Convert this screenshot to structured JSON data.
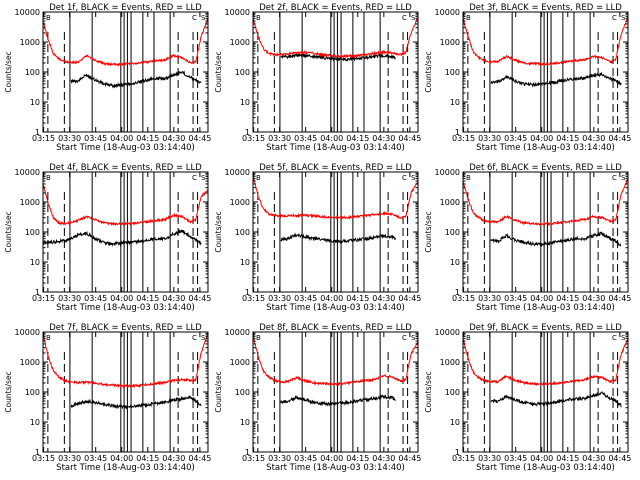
{
  "figure": {
    "background": "#ffffff"
  },
  "shared": {
    "type": "line",
    "x_start_label": "Start Time (18-Aug-03 03:14:40)",
    "ylabel": "Counts/sec",
    "y_scale": "log",
    "ylim": [
      1,
      10000
    ],
    "y_ticks": [
      1,
      10,
      100,
      1000,
      10000
    ],
    "y_tick_labels": [
      "1",
      "10",
      "100",
      "1000",
      "10000"
    ],
    "xlim_minutes": [
      0,
      95
    ],
    "x_ticks_minutes": [
      0.33,
      15.33,
      30.33,
      45.33,
      60.33,
      75.33,
      90.33
    ],
    "x_tick_labels": [
      "03:15",
      "03:30",
      "03:45",
      "04:00",
      "04:15",
      "04:30",
      "04:45"
    ],
    "solid_markers_minutes": [
      15.5,
      28.3,
      44.8,
      46.7,
      48.6,
      50.7,
      57.5,
      63.9,
      73.2
    ],
    "dashed_markers_minutes": [
      2.8,
      12.3,
      77.8,
      86.4,
      89.0
    ],
    "series_colors": {
      "events": "#000000",
      "lld": "#ff0000"
    },
    "legend": {
      "events": "BLACK = Events",
      "lld": "RED = LLD"
    }
  },
  "chart_data": [
    {
      "type": "line",
      "detector": "1f",
      "title": "Det 1f, BLACK = Events, RED = LLD",
      "corner_left": "B",
      "corner_right": "C",
      "corner_right2": "S",
      "series": [
        {
          "name": "Events",
          "color": "#000000",
          "x_range_minutes": [
            16,
            91
          ],
          "x": [
            16,
            20,
            25,
            30,
            35,
            40,
            45,
            50,
            55,
            60,
            65,
            70,
            75,
            80,
            85,
            88,
            91
          ],
          "values": [
            50,
            50,
            80,
            55,
            40,
            35,
            37,
            40,
            45,
            55,
            60,
            60,
            80,
            100,
            65,
            55,
            45
          ]
        },
        {
          "name": "LLD",
          "color": "#ff0000",
          "x_range_minutes": [
            0,
            95
          ],
          "x": [
            0,
            3,
            6,
            9,
            12,
            15,
            20,
            25,
            30,
            35,
            40,
            45,
            50,
            55,
            60,
            65,
            70,
            75,
            80,
            85,
            88,
            91,
            95
          ],
          "values": [
            5000,
            1200,
            400,
            280,
            230,
            210,
            210,
            350,
            250,
            190,
            180,
            180,
            190,
            200,
            220,
            240,
            250,
            350,
            300,
            200,
            220,
            1500,
            6000
          ]
        }
      ]
    },
    {
      "type": "line",
      "detector": "2f",
      "title": "Det 2f, BLACK = Events, RED = LLD",
      "corner_left": "B",
      "corner_right": "C",
      "corner_right2": "S",
      "series": [
        {
          "name": "Events",
          "color": "#000000",
          "x_range_minutes": [
            16,
            82
          ],
          "x": [
            16,
            20,
            25,
            30,
            35,
            40,
            45,
            50,
            55,
            60,
            65,
            70,
            75,
            80,
            82
          ],
          "values": [
            320,
            330,
            360,
            350,
            330,
            300,
            280,
            270,
            270,
            280,
            300,
            330,
            350,
            330,
            300
          ]
        },
        {
          "name": "LLD",
          "color": "#ff0000",
          "x_range_minutes": [
            0,
            95
          ],
          "x": [
            0,
            3,
            6,
            9,
            12,
            15,
            20,
            25,
            30,
            35,
            40,
            45,
            50,
            55,
            60,
            65,
            70,
            75,
            80,
            85,
            88,
            91,
            95
          ],
          "values": [
            6000,
            1500,
            600,
            420,
            380,
            380,
            400,
            430,
            450,
            420,
            380,
            350,
            340,
            340,
            350,
            380,
            420,
            450,
            430,
            380,
            450,
            2000,
            7000
          ]
        }
      ]
    },
    {
      "type": "line",
      "detector": "3f",
      "title": "Det 3f, BLACK = Events, RED = LLD",
      "corner_left": "B",
      "corner_right": "C",
      "corner_right2": "S",
      "series": [
        {
          "name": "Events",
          "color": "#000000",
          "x_range_minutes": [
            16,
            91
          ],
          "x": [
            16,
            20,
            25,
            30,
            35,
            40,
            45,
            50,
            55,
            60,
            65,
            70,
            75,
            80,
            85,
            88,
            91
          ],
          "values": [
            45,
            45,
            70,
            50,
            40,
            38,
            40,
            42,
            48,
            55,
            60,
            62,
            75,
            85,
            60,
            50,
            40
          ]
        },
        {
          "name": "LLD",
          "color": "#ff0000",
          "x_range_minutes": [
            0,
            95
          ],
          "x": [
            0,
            3,
            6,
            9,
            12,
            15,
            20,
            25,
            30,
            35,
            40,
            45,
            50,
            55,
            60,
            65,
            70,
            75,
            80,
            85,
            88,
            91,
            95
          ],
          "values": [
            6000,
            1500,
            450,
            300,
            240,
            220,
            220,
            330,
            250,
            200,
            190,
            185,
            190,
            200,
            220,
            240,
            260,
            330,
            300,
            220,
            260,
            1800,
            7000
          ]
        }
      ]
    },
    {
      "type": "line",
      "detector": "4f",
      "title": "Det 4f, BLACK = Events, RED = LLD",
      "corner_left": "B",
      "corner_right": "C",
      "corner_right2": "S",
      "series": [
        {
          "name": "Events",
          "color": "#000000",
          "x_range_minutes": [
            0,
            91
          ],
          "x": [
            0,
            5,
            10,
            15,
            20,
            25,
            30,
            35,
            40,
            45,
            50,
            55,
            60,
            65,
            70,
            75,
            80,
            85,
            88,
            91
          ],
          "values": [
            45,
            45,
            50,
            55,
            80,
            90,
            60,
            45,
            40,
            42,
            45,
            48,
            55,
            60,
            60,
            85,
            110,
            70,
            55,
            40
          ]
        },
        {
          "name": "LLD",
          "color": "#ff0000",
          "x_range_minutes": [
            0,
            95
          ],
          "x": [
            0,
            3,
            6,
            9,
            12,
            15,
            20,
            25,
            30,
            35,
            40,
            45,
            50,
            55,
            60,
            65,
            70,
            75,
            80,
            85,
            88,
            91,
            95
          ],
          "values": [
            4000,
            900,
            300,
            200,
            190,
            200,
            240,
            330,
            260,
            200,
            190,
            185,
            190,
            200,
            220,
            240,
            260,
            360,
            330,
            220,
            260,
            1500,
            2500
          ]
        }
      ]
    },
    {
      "type": "line",
      "detector": "5f",
      "title": "Det 5f, BLACK = Events, RED = LLD",
      "corner_left": "B",
      "corner_right": "C",
      "corner_right2": "S",
      "series": [
        {
          "name": "Events",
          "color": "#000000",
          "x_range_minutes": [
            16,
            82
          ],
          "x": [
            16,
            20,
            25,
            30,
            35,
            40,
            45,
            50,
            55,
            60,
            65,
            70,
            75,
            80,
            82
          ],
          "values": [
            55,
            60,
            80,
            70,
            60,
            55,
            50,
            48,
            50,
            55,
            60,
            65,
            75,
            70,
            60
          ]
        },
        {
          "name": "LLD",
          "color": "#ff0000",
          "x_range_minutes": [
            0,
            95
          ],
          "x": [
            0,
            3,
            6,
            9,
            12,
            15,
            20,
            25,
            30,
            35,
            40,
            45,
            50,
            55,
            60,
            65,
            70,
            75,
            80,
            85,
            88,
            91,
            95
          ],
          "values": [
            8000,
            1500,
            600,
            400,
            360,
            350,
            350,
            350,
            360,
            340,
            320,
            310,
            300,
            310,
            330,
            350,
            380,
            420,
            400,
            300,
            320,
            2000,
            5000
          ]
        }
      ]
    },
    {
      "type": "line",
      "detector": "6f",
      "title": "Det 6f, BLACK = Events, RED = LLD",
      "corner_left": "B",
      "corner_right": "C",
      "corner_right2": "S",
      "series": [
        {
          "name": "Events",
          "color": "#000000",
          "x_range_minutes": [
            16,
            91
          ],
          "x": [
            16,
            20,
            25,
            30,
            35,
            40,
            45,
            50,
            55,
            60,
            65,
            70,
            75,
            80,
            85,
            88,
            91
          ],
          "values": [
            50,
            50,
            75,
            55,
            45,
            40,
            40,
            42,
            48,
            55,
            60,
            60,
            75,
            90,
            60,
            50,
            35
          ]
        },
        {
          "name": "LLD",
          "color": "#ff0000",
          "x_range_minutes": [
            0,
            95
          ],
          "x": [
            0,
            3,
            6,
            9,
            12,
            15,
            20,
            25,
            30,
            35,
            40,
            45,
            50,
            55,
            60,
            65,
            70,
            75,
            80,
            85,
            88,
            91,
            95
          ],
          "values": [
            5000,
            1200,
            420,
            300,
            240,
            220,
            220,
            330,
            250,
            200,
            190,
            185,
            190,
            200,
            220,
            240,
            260,
            330,
            300,
            220,
            260,
            1800,
            6000
          ]
        }
      ]
    },
    {
      "type": "line",
      "detector": "7f",
      "title": "Det 7f, BLACK = Events, RED = LLD",
      "corner_left": "B",
      "corner_right": "C",
      "corner_right2": "S",
      "series": [
        {
          "name": "Events",
          "color": "#000000",
          "x_range_minutes": [
            16,
            91
          ],
          "x": [
            16,
            20,
            25,
            30,
            35,
            40,
            45,
            50,
            55,
            60,
            65,
            70,
            75,
            80,
            85,
            88,
            91
          ],
          "values": [
            35,
            40,
            50,
            45,
            38,
            35,
            33,
            33,
            35,
            38,
            42,
            45,
            55,
            60,
            65,
            50,
            35
          ]
        },
        {
          "name": "LLD",
          "color": "#ff0000",
          "x_range_minutes": [
            0,
            95
          ],
          "x": [
            0,
            3,
            6,
            9,
            12,
            15,
            20,
            25,
            30,
            35,
            40,
            45,
            50,
            55,
            60,
            65,
            70,
            75,
            80,
            85,
            88,
            91,
            95
          ],
          "values": [
            9000,
            1500,
            500,
            320,
            250,
            220,
            210,
            210,
            200,
            180,
            170,
            160,
            160,
            165,
            175,
            190,
            210,
            240,
            260,
            240,
            260,
            2000,
            9000
          ]
        }
      ]
    },
    {
      "type": "line",
      "detector": "8f",
      "title": "Det 8f, BLACK = Events, RED = LLD",
      "corner_left": "B",
      "corner_right": "C",
      "corner_right2": "S",
      "series": [
        {
          "name": "Events",
          "color": "#000000",
          "x_range_minutes": [
            16,
            82
          ],
          "x": [
            16,
            20,
            25,
            30,
            35,
            40,
            45,
            50,
            55,
            60,
            65,
            70,
            75,
            80,
            82
          ],
          "values": [
            45,
            50,
            65,
            55,
            45,
            42,
            40,
            42,
            45,
            50,
            55,
            60,
            70,
            65,
            55
          ]
        },
        {
          "name": "LLD",
          "color": "#ff0000",
          "x_range_minutes": [
            0,
            95
          ],
          "x": [
            0,
            3,
            6,
            9,
            12,
            15,
            20,
            25,
            30,
            35,
            40,
            45,
            50,
            55,
            60,
            65,
            70,
            75,
            80,
            85,
            88,
            91,
            95
          ],
          "values": [
            8000,
            1500,
            500,
            320,
            250,
            220,
            220,
            300,
            240,
            200,
            190,
            185,
            190,
            200,
            220,
            240,
            260,
            350,
            320,
            230,
            260,
            1800,
            5000
          ]
        }
      ]
    },
    {
      "type": "line",
      "detector": "9f",
      "title": "Det 9f, BLACK = Events, RED = LLD",
      "corner_left": "B",
      "corner_right": "C",
      "corner_right2": "S",
      "series": [
        {
          "name": "Events",
          "color": "#000000",
          "x_range_minutes": [
            16,
            91
          ],
          "x": [
            16,
            20,
            25,
            30,
            35,
            40,
            45,
            50,
            55,
            60,
            65,
            70,
            75,
            80,
            85,
            88,
            91
          ],
          "values": [
            50,
            50,
            70,
            55,
            45,
            40,
            40,
            42,
            48,
            55,
            60,
            60,
            75,
            90,
            60,
            50,
            35
          ]
        },
        {
          "name": "LLD",
          "color": "#ff0000",
          "x_range_minutes": [
            0,
            95
          ],
          "x": [
            0,
            3,
            6,
            9,
            12,
            15,
            20,
            25,
            30,
            35,
            40,
            45,
            50,
            55,
            60,
            65,
            70,
            75,
            80,
            85,
            88,
            91,
            95
          ],
          "values": [
            6000,
            1300,
            450,
            300,
            240,
            220,
            220,
            330,
            250,
            200,
            190,
            185,
            190,
            200,
            220,
            240,
            260,
            330,
            300,
            220,
            260,
            1800,
            6000
          ]
        }
      ]
    }
  ]
}
